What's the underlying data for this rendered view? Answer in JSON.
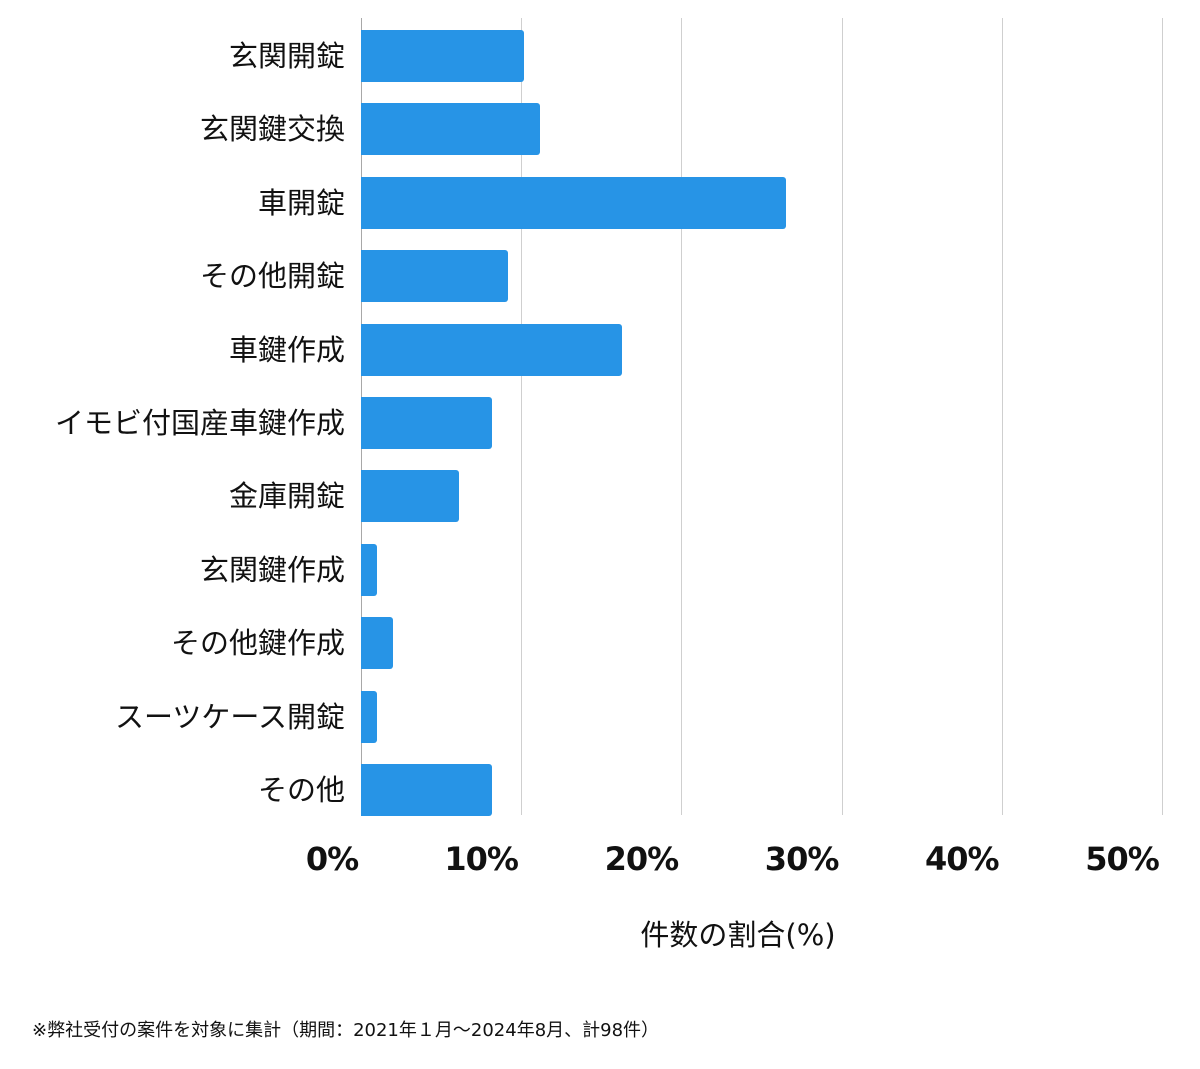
{
  "chart_data": {
    "type": "bar",
    "orientation": "horizontal",
    "title": "",
    "xlabel": "件数の割合(%)",
    "ylabel": "",
    "xlim": [
      0,
      50
    ],
    "x_ticks": [
      "0%",
      "10%",
      "20%",
      "30%",
      "40%",
      "50%"
    ],
    "grid": true,
    "legend": null,
    "categories": [
      "玄関開錠",
      "玄関鍵交換",
      "車開錠",
      "その他開錠",
      "車鍵作成",
      "イモビ付国産車鍵作成",
      "金庫開錠",
      "玄関鍵作成",
      "その他鍵作成",
      "スーツケース開錠",
      "その他"
    ],
    "values": [
      10.2,
      11.2,
      26.5,
      9.2,
      16.3,
      8.2,
      6.1,
      1.0,
      2.0,
      1.0,
      8.2
    ],
    "counts_estimated": [
      10,
      11,
      26,
      9,
      16,
      8,
      6,
      1,
      2,
      1,
      8
    ],
    "bar_color": "#2794e6",
    "annotation": "※弊社受付の案件を対象に集計（期間：2021年１月～2024年8月、計98件）"
  },
  "axis": {
    "xlabel": "件数の割合(%)",
    "ticks": [
      "0%",
      "10%",
      "20%",
      "30%",
      "40%",
      "50%"
    ]
  },
  "footnote": "※弊社受付の案件を対象に集計（期間：2021年１月～2024年8月、計98件）",
  "colors": {
    "bar": "#2794e6",
    "grid": "#cfcfcf",
    "text": "#111111"
  }
}
